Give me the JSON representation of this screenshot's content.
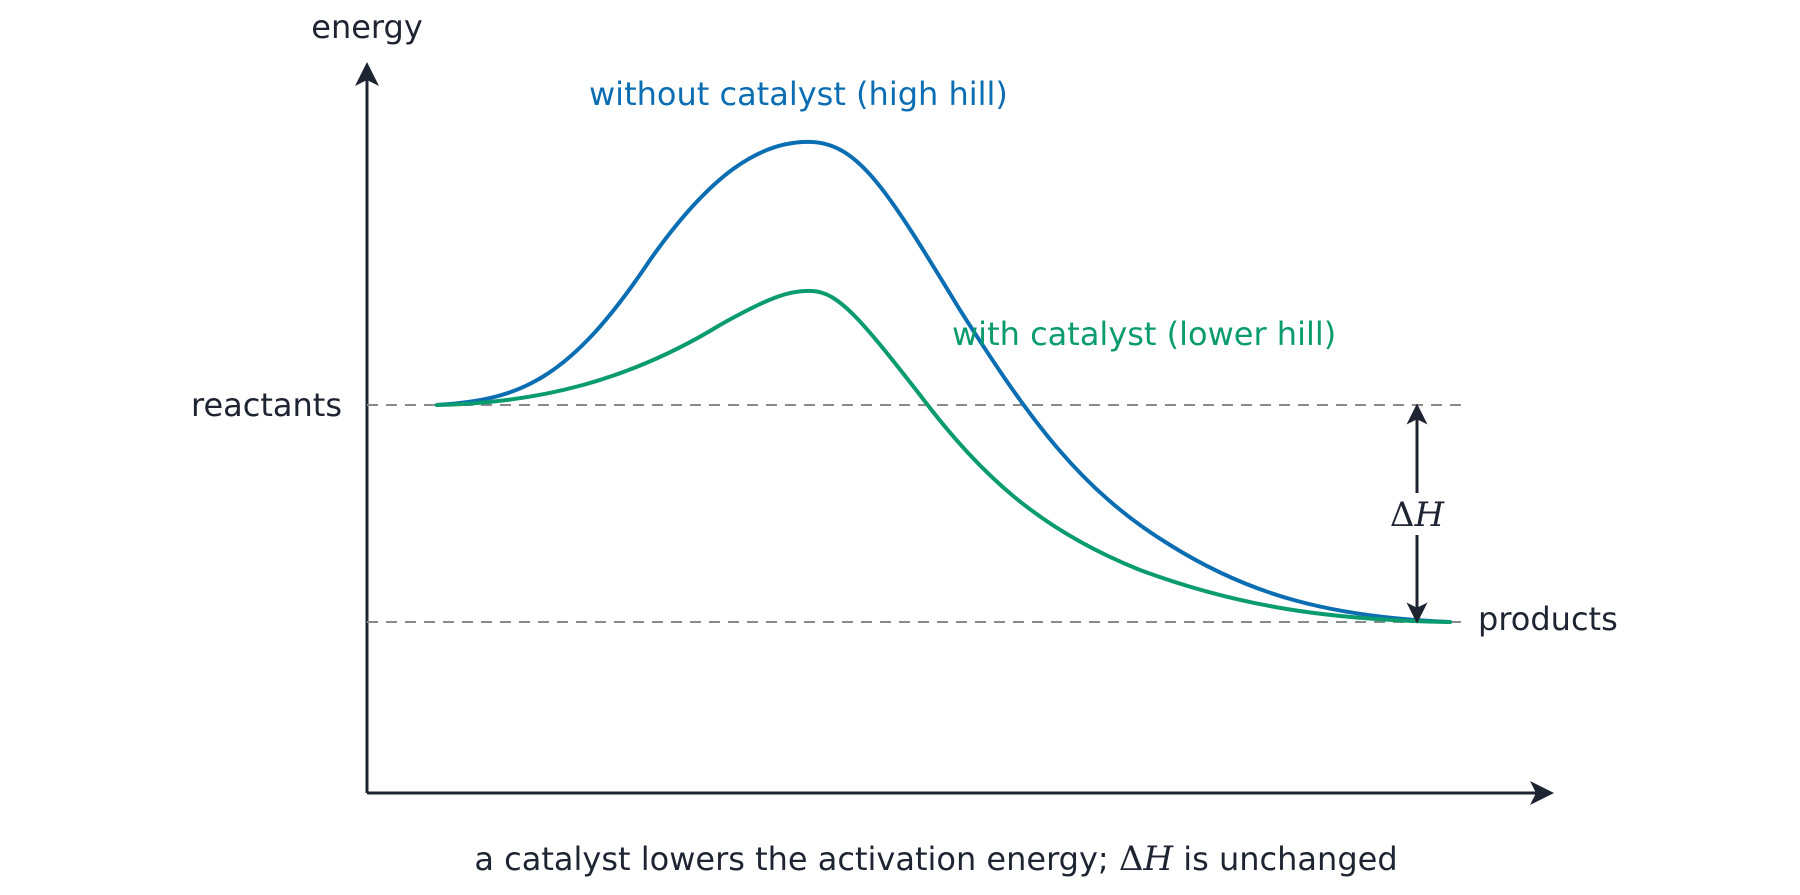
{
  "axis": {
    "y_label": "energy"
  },
  "levels": {
    "reactants_label": "reactants",
    "products_label": "products"
  },
  "curves": [
    {
      "name": "without catalyst (high hill)",
      "color": "#0b6eb3"
    },
    {
      "name": "with catalyst (lower hill)",
      "color": "#0a9b6e"
    }
  ],
  "delta_h": {
    "symbol": "Δ",
    "variable": "H"
  },
  "caption": {
    "before": "a catalyst lowers the activation energy; ",
    "symbol": "Δ",
    "variable": "H",
    "after": " is unchanged"
  },
  "colors": {
    "axis": "#1f2433",
    "guide": "#8a8a8a"
  }
}
